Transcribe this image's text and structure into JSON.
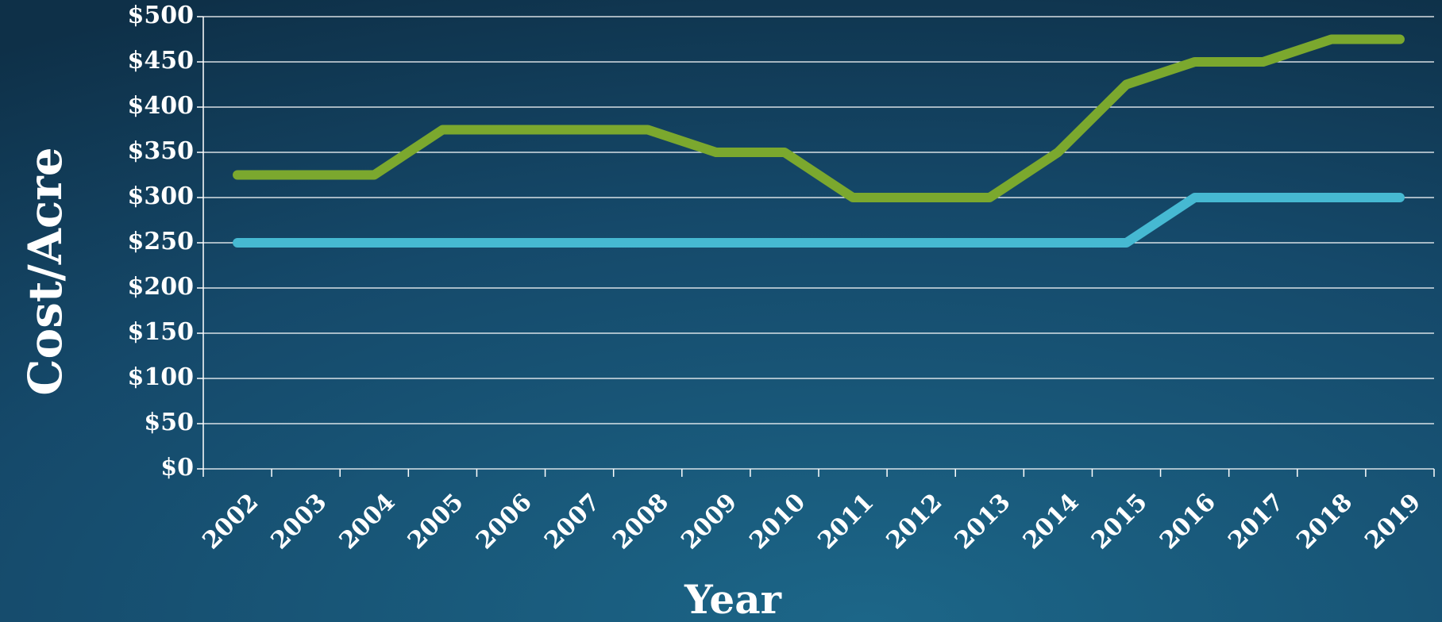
{
  "chart_data": {
    "type": "line",
    "xlabel": "Year",
    "ylabel": "Cost/Acre",
    "categories": [
      "2002",
      "2003",
      "2004",
      "2005",
      "2006",
      "2007",
      "2008",
      "2009",
      "2010",
      "2011",
      "2012",
      "2013",
      "2014",
      "2015",
      "2016",
      "2017",
      "2018",
      "2019"
    ],
    "series": [
      {
        "color": "#7ba82e",
        "values": [
          325,
          325,
          325,
          375,
          375,
          375,
          375,
          350,
          350,
          300,
          300,
          300,
          350,
          425,
          450,
          450,
          475,
          475
        ]
      },
      {
        "color": "#46b9d2",
        "values": [
          250,
          250,
          250,
          250,
          250,
          250,
          250,
          250,
          250,
          250,
          250,
          250,
          250,
          250,
          300,
          300,
          300,
          300
        ]
      }
    ],
    "ylim": [
      0,
      500
    ],
    "yticks": [
      {
        "value": 0,
        "label": "$0"
      },
      {
        "value": 50,
        "label": "$50"
      },
      {
        "value": 100,
        "label": "$100"
      },
      {
        "value": 150,
        "label": "$150"
      },
      {
        "value": 200,
        "label": "$200"
      },
      {
        "value": 250,
        "label": "$250"
      },
      {
        "value": 300,
        "label": "$300"
      },
      {
        "value": 350,
        "label": "$350"
      },
      {
        "value": 400,
        "label": "$400"
      },
      {
        "value": 450,
        "label": "$450"
      },
      {
        "value": 500,
        "label": "$500"
      }
    ],
    "grid": true
  }
}
